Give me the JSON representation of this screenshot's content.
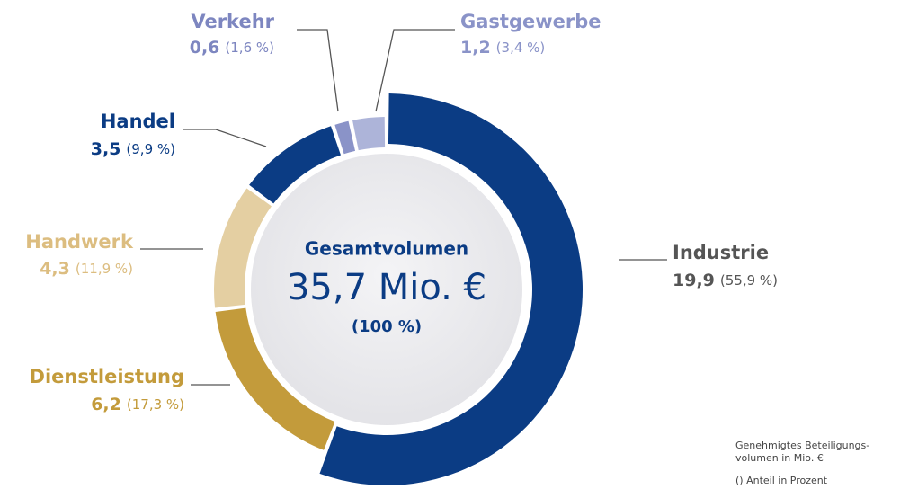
{
  "chart_data": {
    "type": "donut",
    "center_title": "Gesamtvolumen",
    "center_value": "35,7 Mio. €",
    "center_share": "(100 %)",
    "categories": [
      "Industrie",
      "Dienstleistung",
      "Handwerk",
      "Handel",
      "Verkehr",
      "Gastgewerbe"
    ],
    "values": [
      19.9,
      6.2,
      4.3,
      3.5,
      0.6,
      1.2
    ],
    "value_labels": [
      "19,9",
      "6,2",
      "4,3",
      "3,5",
      "0,6",
      "1,2"
    ],
    "percentages": [
      55.9,
      17.3,
      11.9,
      9.9,
      1.6,
      3.4
    ],
    "percentage_labels": [
      "(55,9 %)",
      "(17,3 %)",
      "(11,9 %)",
      "(9,9 %)",
      "(1,6 %)",
      "(3,4 %)"
    ],
    "colors": [
      "#0b3c84",
      "#c39b3b",
      "#e4cfa2",
      "#0b3c84",
      "#8a93c8",
      "#adb4d9"
    ],
    "label_colors": [
      "#555555",
      "#c39b3b",
      "#dcbd80",
      "#0b3c84",
      "#7d86c0",
      "#8a93c8"
    ],
    "notes": [
      "Genehmigtes Beteiligungs-",
      "volumen in Mio. €",
      "() Anteil in Prozent"
    ]
  }
}
